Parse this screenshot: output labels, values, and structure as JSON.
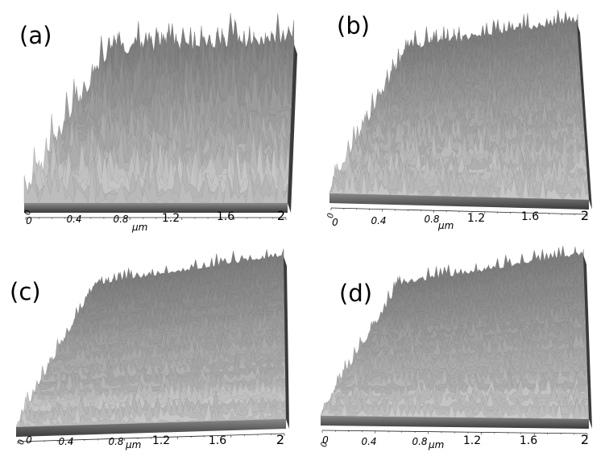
{
  "panels": [
    {
      "id": "a",
      "label": "(a)",
      "roughness": "high"
    },
    {
      "id": "b",
      "label": "(b)",
      "roughness": "medium"
    },
    {
      "id": "c",
      "label": "(c)",
      "roughness": "low"
    },
    {
      "id": "d",
      "label": "(d)",
      "roughness": "low"
    }
  ],
  "axis": {
    "unit": "μm",
    "ticks": [
      "0",
      "0.4",
      "0.8",
      "1.2",
      "1.6",
      "2"
    ],
    "y_origin_label": "0"
  },
  "colors": {
    "surface_light": "#d8d8d8",
    "surface_mid": "#8a8a8a",
    "surface_dark": "#3a3a3a",
    "background": "#ffffff"
  }
}
